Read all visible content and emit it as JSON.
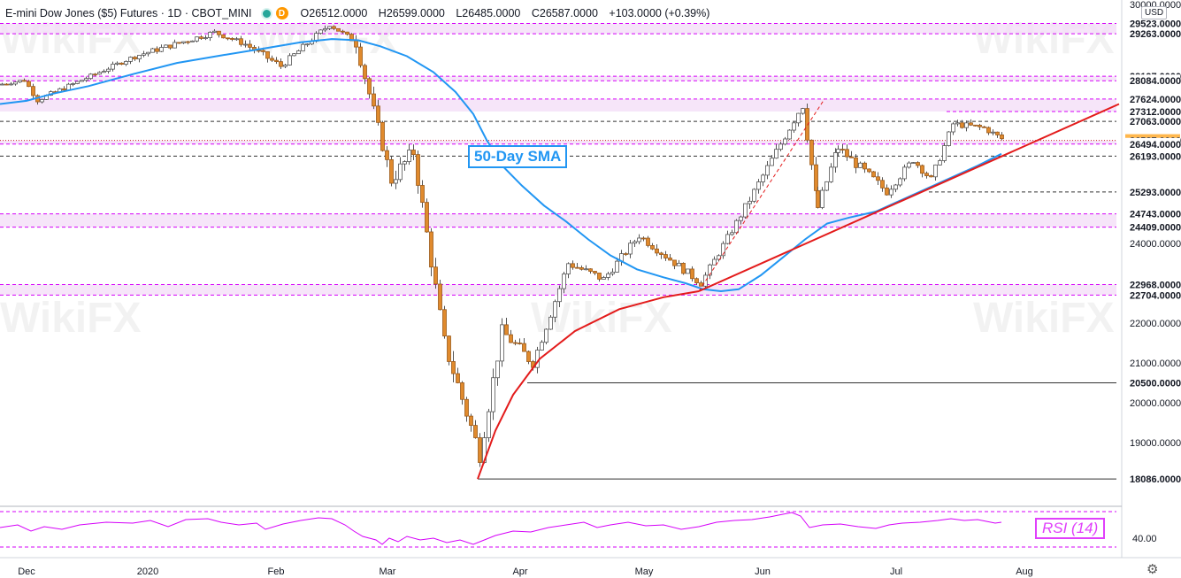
{
  "header": {
    "symbol_title": "E-mini Dow Jones ($5) Futures · 1D · CBOT_MINI",
    "status_letter": "D",
    "open": "O26512.0000",
    "high": "H26599.0000",
    "low": "L26485.0000",
    "close": "C26587.0000",
    "change": "+103.0000 (+0.39%)"
  },
  "currency_label": "USD",
  "annotations": {
    "sma_label": "50-Day SMA",
    "rsi_label": "RSI (14)"
  },
  "colors": {
    "up_body": "#ffffff",
    "down_body": "#e08a2d",
    "wick": "#555555",
    "sma": "#2196f3",
    "trend": "#e31b1b",
    "zone_fill": "#f3dcf7",
    "zone_dash": "#d500f9",
    "rsi": "#d500f9",
    "price_tag_current": "#ffb74d"
  },
  "icons": {
    "settings": "gear-icon",
    "status_dot": "green-dot-icon",
    "daily_badge": "d-badge-icon"
  },
  "chart_data": {
    "type": "candlestick",
    "title": "E-mini Dow Jones ($5) Futures · 1D · CBOT_MINI",
    "y_range": [
      17600,
      30150
    ],
    "x_tick_labels": [
      "Dec",
      "2020",
      "Feb",
      "Mar",
      "Apr",
      "May",
      "Jun",
      "Jul",
      "Aug"
    ],
    "y_tick_labels": [
      "30000.0000",
      "24000.0000",
      "22000.0000",
      "21000.0000",
      "20000.0000",
      "19000.0000"
    ],
    "horizontal_levels": [
      "29523.0000",
      "29263.0000",
      "28197.0000",
      "28084.0000",
      "27624.0000",
      "27312.0000",
      "27063.0000",
      "26587.0000",
      "26494.0000",
      "26193.0000",
      "25293.0000",
      "24743.0000",
      "24409.0000",
      "22968.0000",
      "22704.0000",
      "20500.0000",
      "18086.0000"
    ],
    "current_price": "26587.0000",
    "zones": [
      [
        29263,
        29523
      ],
      [
        28084,
        28197
      ],
      [
        27312,
        27624
      ],
      [
        26494,
        26587
      ],
      [
        24409,
        24743
      ],
      [
        22704,
        22968
      ]
    ],
    "rsi_tick_labels": [
      "40.00"
    ],
    "series": [
      {
        "name": "50-Day SMA",
        "values": [
          [
            0,
            27500
          ],
          [
            30,
            27580
          ],
          [
            60,
            27760
          ],
          [
            100,
            27950
          ],
          [
            150,
            28250
          ],
          [
            200,
            28530
          ],
          [
            250,
            28720
          ],
          [
            300,
            28900
          ],
          [
            340,
            29050
          ],
          [
            375,
            29130
          ],
          [
            405,
            29100
          ],
          [
            430,
            28950
          ],
          [
            460,
            28700
          ],
          [
            490,
            28300
          ],
          [
            515,
            27800
          ],
          [
            535,
            27250
          ],
          [
            550,
            26600
          ],
          [
            570,
            25900
          ],
          [
            590,
            25450
          ],
          [
            615,
            24950
          ],
          [
            640,
            24550
          ],
          [
            665,
            24100
          ],
          [
            690,
            23700
          ],
          [
            720,
            23350
          ],
          [
            750,
            23150
          ],
          [
            775,
            23000
          ],
          [
            795,
            22850
          ],
          [
            815,
            22800
          ],
          [
            835,
            22850
          ],
          [
            860,
            23200
          ],
          [
            885,
            23650
          ],
          [
            910,
            24100
          ],
          [
            935,
            24500
          ],
          [
            960,
            24650
          ],
          [
            990,
            24800
          ],
          [
            1020,
            25100
          ],
          [
            1050,
            25400
          ],
          [
            1080,
            25700
          ],
          [
            1105,
            25950
          ],
          [
            1132,
            26250
          ]
        ]
      },
      {
        "name": "RSI (14)",
        "values": [
          [
            0,
            52
          ],
          [
            20,
            55
          ],
          [
            35,
            48
          ],
          [
            50,
            53
          ],
          [
            70,
            50
          ],
          [
            90,
            55
          ],
          [
            120,
            58
          ],
          [
            150,
            57
          ],
          [
            170,
            60
          ],
          [
            190,
            53
          ],
          [
            210,
            61
          ],
          [
            235,
            62
          ],
          [
            250,
            58
          ],
          [
            270,
            55
          ],
          [
            290,
            57
          ],
          [
            300,
            50
          ],
          [
            320,
            56
          ],
          [
            340,
            60
          ],
          [
            360,
            63
          ],
          [
            375,
            62
          ],
          [
            390,
            55
          ],
          [
            400,
            48
          ],
          [
            410,
            42
          ],
          [
            425,
            38
          ],
          [
            432,
            33
          ],
          [
            440,
            40
          ],
          [
            450,
            36
          ],
          [
            460,
            42
          ],
          [
            475,
            38
          ],
          [
            490,
            40
          ],
          [
            505,
            35
          ],
          [
            520,
            38
          ],
          [
            535,
            33
          ],
          [
            545,
            37
          ],
          [
            560,
            43
          ],
          [
            580,
            48
          ],
          [
            600,
            47
          ],
          [
            620,
            52
          ],
          [
            640,
            55
          ],
          [
            660,
            58
          ],
          [
            675,
            52
          ],
          [
            690,
            55
          ],
          [
            710,
            58
          ],
          [
            730,
            54
          ],
          [
            750,
            55
          ],
          [
            770,
            50
          ],
          [
            790,
            53
          ],
          [
            810,
            58
          ],
          [
            830,
            60
          ],
          [
            850,
            61
          ],
          [
            870,
            64
          ],
          [
            885,
            67
          ],
          [
            895,
            69
          ],
          [
            905,
            65
          ],
          [
            915,
            52
          ],
          [
            930,
            55
          ],
          [
            950,
            56
          ],
          [
            970,
            53
          ],
          [
            990,
            51
          ],
          [
            1005,
            55
          ],
          [
            1020,
            57
          ],
          [
            1040,
            58
          ],
          [
            1060,
            60
          ],
          [
            1075,
            62
          ],
          [
            1090,
            60
          ],
          [
            1105,
            61
          ],
          [
            1115,
            59
          ],
          [
            1125,
            57
          ],
          [
            1132,
            58
          ]
        ]
      }
    ],
    "trend_curve": [
      [
        540,
        18086
      ],
      [
        560,
        19300
      ],
      [
        580,
        20200
      ],
      [
        610,
        21100
      ],
      [
        650,
        21800
      ],
      [
        700,
        22350
      ],
      [
        750,
        22650
      ],
      [
        790,
        22800
      ]
    ],
    "trend_line": [
      [
        790,
        22800
      ],
      [
        1265,
        27500
      ]
    ],
    "dashed_support": [
      [
        790,
        22800
      ],
      [
        932,
        27624
      ]
    ],
    "segments": [
      {
        "x0": 0,
        "x1": 25,
        "s": 28000,
        "e": 28100,
        "amp": 90
      },
      {
        "x0": 25,
        "x1": 40,
        "s": 28100,
        "e": 27600,
        "amp": 120
      },
      {
        "x0": 40,
        "x1": 80,
        "s": 27600,
        "e": 28000,
        "amp": 120
      },
      {
        "x0": 80,
        "x1": 150,
        "s": 28000,
        "e": 28700,
        "amp": 110
      },
      {
        "x0": 150,
        "x1": 240,
        "s": 28700,
        "e": 29300,
        "amp": 140
      },
      {
        "x0": 240,
        "x1": 275,
        "s": 29300,
        "e": 29000,
        "amp": 130
      },
      {
        "x0": 275,
        "x1": 315,
        "s": 29000,
        "e": 28450,
        "amp": 180
      },
      {
        "x0": 315,
        "x1": 370,
        "s": 28450,
        "e": 29500,
        "amp": 150
      },
      {
        "x0": 370,
        "x1": 400,
        "s": 29500,
        "e": 29050,
        "amp": 130
      },
      {
        "x0": 400,
        "x1": 440,
        "s": 29050,
        "e": 25600,
        "amp": 320
      },
      {
        "x0": 440,
        "x1": 465,
        "s": 25600,
        "e": 26300,
        "amp": 400
      },
      {
        "x0": 465,
        "x1": 500,
        "s": 26300,
        "e": 21500,
        "amp": 420
      },
      {
        "x0": 500,
        "x1": 540,
        "s": 21500,
        "e": 18700,
        "amp": 450
      },
      {
        "x0": 540,
        "x1": 565,
        "s": 18700,
        "e": 21800,
        "amp": 400
      },
      {
        "x0": 565,
        "x1": 600,
        "s": 21800,
        "e": 21000,
        "amp": 320
      },
      {
        "x0": 600,
        "x1": 640,
        "s": 21000,
        "e": 23500,
        "amp": 260
      },
      {
        "x0": 640,
        "x1": 680,
        "s": 23500,
        "e": 23100,
        "amp": 220
      },
      {
        "x0": 680,
        "x1": 720,
        "s": 23100,
        "e": 24200,
        "amp": 200
      },
      {
        "x0": 720,
        "x1": 790,
        "s": 24200,
        "e": 23000,
        "amp": 200
      },
      {
        "x0": 790,
        "x1": 840,
        "s": 23000,
        "e": 24900,
        "amp": 180
      },
      {
        "x0": 840,
        "x1": 905,
        "s": 24900,
        "e": 27500,
        "amp": 220
      },
      {
        "x0": 905,
        "x1": 922,
        "s": 27500,
        "e": 24900,
        "amp": 350
      },
      {
        "x0": 922,
        "x1": 945,
        "s": 24900,
        "e": 26400,
        "amp": 260
      },
      {
        "x0": 945,
        "x1": 1000,
        "s": 26400,
        "e": 25300,
        "amp": 240
      },
      {
        "x0": 1000,
        "x1": 1030,
        "s": 25300,
        "e": 26100,
        "amp": 200
      },
      {
        "x0": 1030,
        "x1": 1050,
        "s": 26100,
        "e": 25600,
        "amp": 180
      },
      {
        "x0": 1050,
        "x1": 1075,
        "s": 25600,
        "e": 27000,
        "amp": 190
      },
      {
        "x0": 1075,
        "x1": 1110,
        "s": 27000,
        "e": 26900,
        "amp": 160
      },
      {
        "x0": 1110,
        "x1": 1133,
        "s": 26900,
        "e": 26587,
        "amp": 150
      }
    ]
  }
}
